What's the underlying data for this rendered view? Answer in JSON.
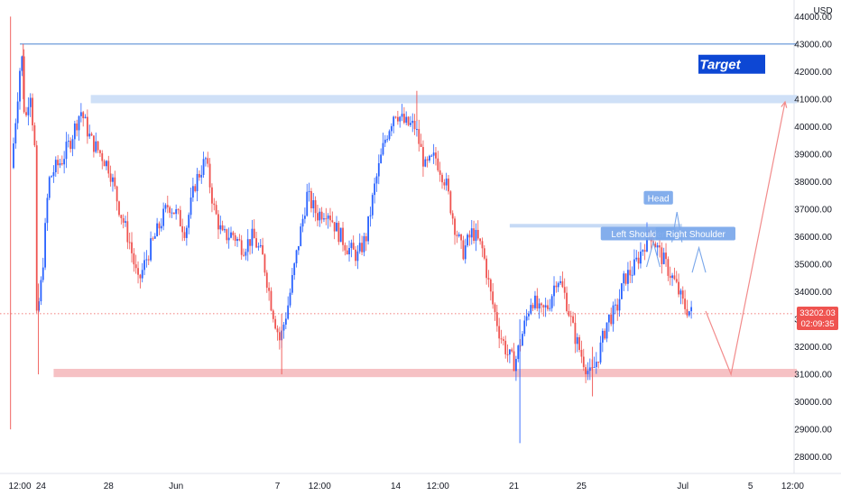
{
  "chart_data": {
    "type": "candlestick",
    "currency": "USD",
    "y_axis": {
      "min": 27400,
      "max": 44600,
      "ticks": [
        "44000.00",
        "43000.00",
        "42000.00",
        "41000.00",
        "40000.00",
        "39000.00",
        "38000.00",
        "37000.00",
        "36000.00",
        "35000.00",
        "34000.00",
        "33000.00",
        "32000.00",
        "31000.00",
        "30000.00",
        "29000.00",
        "28000.00"
      ],
      "tick_values": [
        44000,
        43000,
        42000,
        41000,
        40000,
        39000,
        38000,
        37000,
        36000,
        35000,
        34000,
        33000,
        32000,
        31000,
        30000,
        29000,
        28000
      ]
    },
    "x_axis": {
      "ticks": [
        {
          "label": "12:00",
          "t": 0
        },
        {
          "label": "24",
          "t": 1.25
        },
        {
          "label": "28",
          "t": 5.25
        },
        {
          "label": "Jun",
          "t": 9.25
        },
        {
          "label": "7",
          "t": 15.25
        },
        {
          "label": "12:00",
          "t": 17.75
        },
        {
          "label": "14",
          "t": 22.25
        },
        {
          "label": "12:00",
          "t": 24.75
        },
        {
          "label": "21",
          "t": 29.25
        },
        {
          "label": "25",
          "t": 33.25
        },
        {
          "label": "Jul",
          "t": 39.25
        },
        {
          "label": "5",
          "t": 43.25
        },
        {
          "label": "12:00",
          "t": 45.75
        }
      ],
      "t_min": -0.6,
      "t_max": 46.5
    },
    "current_price": {
      "value": "33202.03",
      "countdown": "02:09:35",
      "price": 33202.03
    },
    "levels": [
      {
        "name": "top-line",
        "price": 43000,
        "t_start": 0,
        "t_end": 46.0,
        "color": "#5b8fd6"
      },
      {
        "name": "resistance-zone",
        "price_low": 40850,
        "price_high": 41150,
        "t_start": 4.2,
        "t_end": 46.0,
        "color": "#cfe0f7"
      },
      {
        "name": "support-zone",
        "price_low": 30900,
        "price_high": 31200,
        "t_start": 2.0,
        "t_end": 46.0,
        "color": "#f6c1c4"
      },
      {
        "name": "neckline",
        "price": 36400,
        "t_start": 29.0,
        "t_end": 39.2,
        "color": "#c6daf5"
      }
    ],
    "annotations": [
      {
        "name": "target",
        "text": "Target",
        "price": 42250,
        "t": 42.8
      },
      {
        "name": "head",
        "text": "Head",
        "price": 37400,
        "t": 37.8
      },
      {
        "name": "left-shoulder",
        "text": "Left Shoulder",
        "price": 36100,
        "t": 36.6
      },
      {
        "name": "right-shoulder",
        "text": "Right Shoulder",
        "price": 36100,
        "t": 40.0
      }
    ],
    "projection": [
      {
        "t": 40.6,
        "price": 33300
      },
      {
        "t": 42.1,
        "price": 31000
      },
      {
        "t": 45.3,
        "price": 40900
      }
    ],
    "pattern_peaks": [
      [
        {
          "t": 37.1,
          "price": 34900
        },
        {
          "t": 37.5,
          "price": 35800
        },
        {
          "t": 37.9,
          "price": 34900
        }
      ],
      [
        {
          "t": 38.6,
          "price": 35800
        },
        {
          "t": 38.9,
          "price": 36900
        },
        {
          "t": 39.2,
          "price": 35800
        }
      ],
      [
        {
          "t": 39.8,
          "price": 34700
        },
        {
          "t": 40.2,
          "price": 35600
        },
        {
          "t": 40.6,
          "price": 34700
        }
      ]
    ],
    "price_path": [
      {
        "t": -0.5,
        "p": 38500
      },
      {
        "t": 0.1,
        "p": 42800
      },
      {
        "t": 0.3,
        "p": 40000
      },
      {
        "t": 0.6,
        "p": 41500
      },
      {
        "t": 0.9,
        "p": 39000
      },
      {
        "t": 1.0,
        "p": 33000
      },
      {
        "t": 1.3,
        "p": 34500
      },
      {
        "t": 1.7,
        "p": 38000
      },
      {
        "t": 2.0,
        "p": 38400
      },
      {
        "t": 2.5,
        "p": 38800
      },
      {
        "t": 3.0,
        "p": 39500
      },
      {
        "t": 3.6,
        "p": 40600
      },
      {
        "t": 4.2,
        "p": 39500
      },
      {
        "t": 4.8,
        "p": 39000
      },
      {
        "t": 5.3,
        "p": 38500
      },
      {
        "t": 5.9,
        "p": 37000
      },
      {
        "t": 6.5,
        "p": 35800
      },
      {
        "t": 7.0,
        "p": 34300
      },
      {
        "t": 7.6,
        "p": 35400
      },
      {
        "t": 8.2,
        "p": 36300
      },
      {
        "t": 8.8,
        "p": 37200
      },
      {
        "t": 9.3,
        "p": 36800
      },
      {
        "t": 9.8,
        "p": 36200
      },
      {
        "t": 10.4,
        "p": 38000
      },
      {
        "t": 11.0,
        "p": 38800
      },
      {
        "t": 11.5,
        "p": 37000
      },
      {
        "t": 12.0,
        "p": 36000
      },
      {
        "t": 12.6,
        "p": 36100
      },
      {
        "t": 13.2,
        "p": 35600
      },
      {
        "t": 13.8,
        "p": 36000
      },
      {
        "t": 14.4,
        "p": 35200
      },
      {
        "t": 14.9,
        "p": 33500
      },
      {
        "t": 15.4,
        "p": 32200
      },
      {
        "t": 15.9,
        "p": 33600
      },
      {
        "t": 16.5,
        "p": 35800
      },
      {
        "t": 17.0,
        "p": 37500
      },
      {
        "t": 17.6,
        "p": 36800
      },
      {
        "t": 18.2,
        "p": 37000
      },
      {
        "t": 18.8,
        "p": 36200
      },
      {
        "t": 19.4,
        "p": 35600
      },
      {
        "t": 20.0,
        "p": 35300
      },
      {
        "t": 20.5,
        "p": 36000
      },
      {
        "t": 21.0,
        "p": 37800
      },
      {
        "t": 21.6,
        "p": 39500
      },
      {
        "t": 22.2,
        "p": 40600
      },
      {
        "t": 22.8,
        "p": 40100
      },
      {
        "t": 23.4,
        "p": 40000
      },
      {
        "t": 24.0,
        "p": 38500
      },
      {
        "t": 24.6,
        "p": 38900
      },
      {
        "t": 25.2,
        "p": 38000
      },
      {
        "t": 25.7,
        "p": 36500
      },
      {
        "t": 26.2,
        "p": 35400
      },
      {
        "t": 26.8,
        "p": 36200
      },
      {
        "t": 27.4,
        "p": 35500
      },
      {
        "t": 27.9,
        "p": 33800
      },
      {
        "t": 28.4,
        "p": 32500
      },
      {
        "t": 28.9,
        "p": 31700
      },
      {
        "t": 29.3,
        "p": 31400
      },
      {
        "t": 29.8,
        "p": 32600
      },
      {
        "t": 30.3,
        "p": 33800
      },
      {
        "t": 30.8,
        "p": 33200
      },
      {
        "t": 31.3,
        "p": 33500
      },
      {
        "t": 31.8,
        "p": 34600
      },
      {
        "t": 32.3,
        "p": 33800
      },
      {
        "t": 32.8,
        "p": 32500
      },
      {
        "t": 33.3,
        "p": 31600
      },
      {
        "t": 33.8,
        "p": 30900
      },
      {
        "t": 34.3,
        "p": 31800
      },
      {
        "t": 34.8,
        "p": 33000
      },
      {
        "t": 35.3,
        "p": 33300
      },
      {
        "t": 35.8,
        "p": 34500
      },
      {
        "t": 36.3,
        "p": 34800
      },
      {
        "t": 36.8,
        "p": 35500
      },
      {
        "t": 37.3,
        "p": 36200
      },
      {
        "t": 37.8,
        "p": 35500
      },
      {
        "t": 38.3,
        "p": 34900
      },
      {
        "t": 38.8,
        "p": 34300
      },
      {
        "t": 39.3,
        "p": 33500
      },
      {
        "t": 39.8,
        "p": 33200
      }
    ]
  }
}
